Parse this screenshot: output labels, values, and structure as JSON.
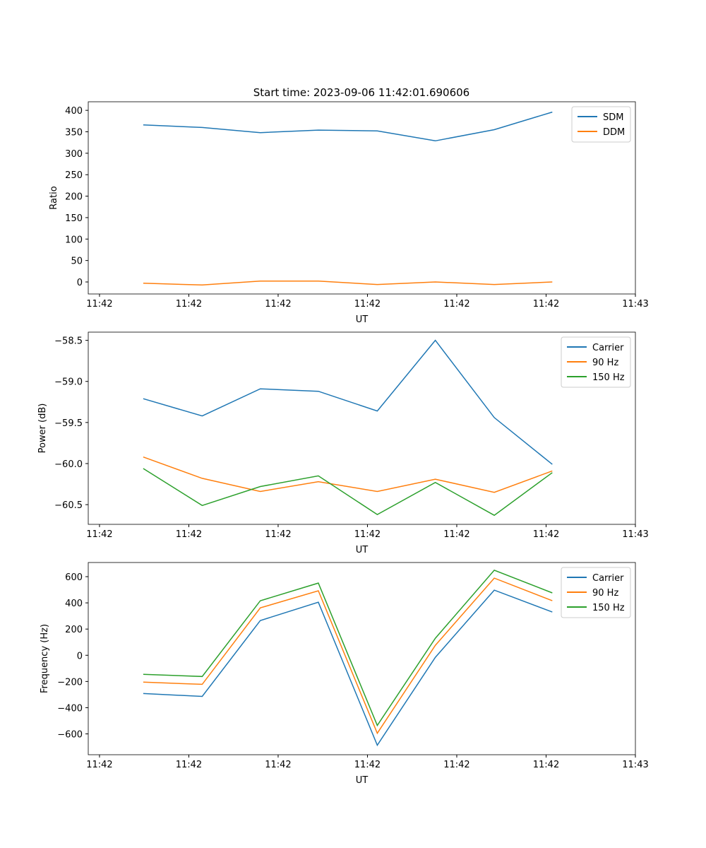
{
  "chart_data": {
    "type": "line",
    "title": "Start time: 2023-09-06 11:42:01.690606",
    "x_unit": "seconds after 11:42:00",
    "xlim": [
      -1.26,
      60
    ],
    "x_ticks": [
      0,
      10,
      20,
      30,
      40,
      50,
      60
    ],
    "x_tick_labels": [
      "11:42",
      "11:42",
      "11:42",
      "11:42",
      "11:42",
      "11:42",
      "11:43"
    ],
    "x": [
      4.9,
      11.5,
      18.0,
      24.5,
      31.1,
      37.6,
      44.2,
      50.7
    ],
    "colors": {
      "c0": "#1f77b4",
      "c1": "#ff7f0e",
      "c2": "#2ca02c"
    },
    "panels": [
      {
        "xlabel": "UT",
        "ylabel": "Ratio",
        "ylim": [
          -28,
          420
        ],
        "y_ticks": [
          0,
          50,
          100,
          150,
          200,
          250,
          300,
          350,
          400
        ],
        "y_tick_labels": [
          "0",
          "50",
          "100",
          "150",
          "200",
          "250",
          "300",
          "350",
          "400"
        ],
        "legend": "top-right",
        "series": [
          {
            "name": "SDM",
            "values": [
              366,
              360,
              348,
              354,
              352,
              329,
              355,
              396
            ]
          },
          {
            "name": "DDM",
            "values": [
              -3,
              -7,
              2,
              2,
              -6,
              0,
              -6,
              0
            ]
          }
        ]
      },
      {
        "xlabel": "UT",
        "ylabel": "Power (dB)",
        "ylim": [
          -60.74,
          -58.4
        ],
        "y_ticks": [
          -60.5,
          -60.0,
          -59.5,
          -59.0,
          -58.5
        ],
        "y_tick_labels": [
          "−60.5",
          "−60.0",
          "−59.5",
          "−59.0",
          "−58.5"
        ],
        "legend": "top-right",
        "series": [
          {
            "name": "Carrier",
            "values": [
              -59.21,
              -59.42,
              -59.09,
              -59.12,
              -59.36,
              -58.5,
              -59.44,
              -60.01
            ]
          },
          {
            "name": "90 Hz",
            "values": [
              -59.92,
              -60.18,
              -60.34,
              -60.22,
              -60.34,
              -60.19,
              -60.35,
              -60.09
            ]
          },
          {
            "name": "150 Hz",
            "values": [
              -60.06,
              -60.51,
              -60.28,
              -60.15,
              -60.62,
              -60.23,
              -60.63,
              -60.11
            ]
          }
        ]
      },
      {
        "xlabel": "UT",
        "ylabel": "Frequency (Hz)",
        "ylim": [
          -759,
          708
        ],
        "y_ticks": [
          -600,
          -400,
          -200,
          0,
          200,
          400,
          600
        ],
        "y_tick_labels": [
          "−600",
          "−400",
          "−200",
          "0",
          "200",
          "400",
          "600"
        ],
        "legend": "top-right",
        "series": [
          {
            "name": "Carrier",
            "values": [
              -292,
              -314,
              265,
              405,
              -686,
              -16,
              497,
              330
            ]
          },
          {
            "name": "90 Hz",
            "values": [
              -205,
              -222,
              362,
              492,
              -595,
              76,
              589,
              416
            ]
          },
          {
            "name": "150 Hz",
            "values": [
              -146,
              -162,
              416,
              551,
              -535,
              130,
              649,
              476
            ]
          }
        ]
      }
    ]
  }
}
